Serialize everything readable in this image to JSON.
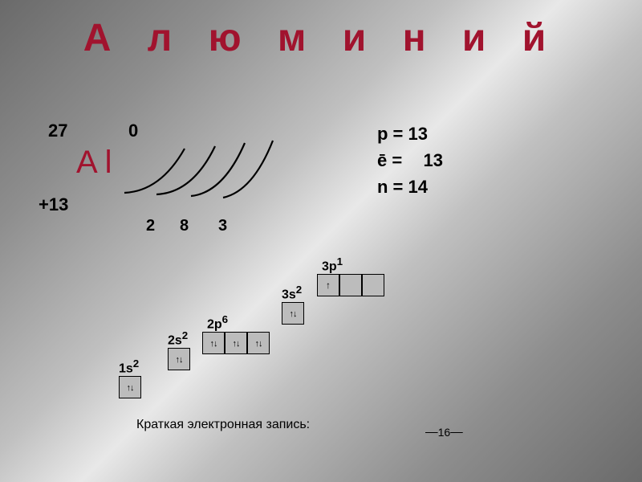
{
  "title": "А л ю м и н и й",
  "title_color": "#a1132e",
  "element": {
    "symbol": "A l",
    "symbol_color": "#a1132e",
    "mass": "27",
    "charge_top": "0",
    "charge_left": "+13"
  },
  "shells": {
    "s1": "2",
    "s2": "8",
    "s3": "3"
  },
  "particles": {
    "p": "p = 13",
    "e_label": "ē =",
    "e_value": "13",
    "n": "n = 14"
  },
  "orbitals": {
    "o1s": {
      "label": "1s",
      "exp": "2"
    },
    "o2s": {
      "label": "2s",
      "exp": "2"
    },
    "o2p": {
      "label": "2p",
      "exp": "6"
    },
    "o3s": {
      "label": "3s",
      "exp": "2"
    },
    "o3p": {
      "label": "3p",
      "exp": "1"
    }
  },
  "caption": "Краткая электронная запись:",
  "page_number": "16",
  "colors": {
    "text_dark": "#000000",
    "box_fill": "#bcbcbc",
    "box_border": "#000000"
  },
  "fonts": {
    "title_size": 48,
    "symbol_size": 40,
    "particle_size": 22
  },
  "shell_arcs": {
    "stroke": "#000000",
    "stroke_width": 2.2,
    "paths": [
      "M 5 80 Q 50 78 80 25",
      "M 45 82 Q 90 80 118 22",
      "M 88 84 Q 128 80 155 18",
      "M 128 86 Q 165 78 190 15"
    ]
  }
}
